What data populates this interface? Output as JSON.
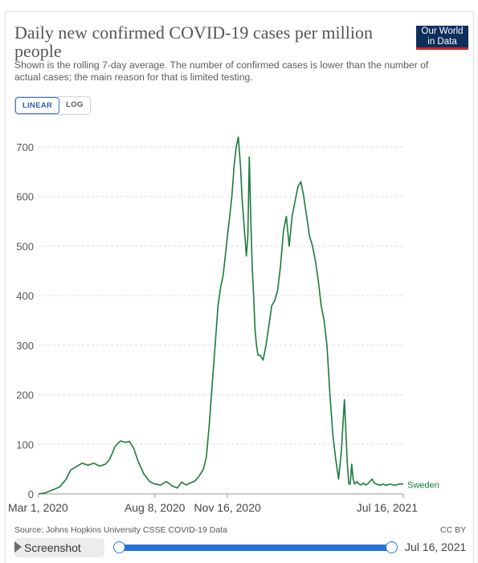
{
  "header": {
    "title": "Daily new confirmed COVID-19 cases per million people",
    "subtitle": "Shown is the rolling 7-day average. The number of confirmed cases is lower than the number of actual cases; the main reason for that is limited testing.",
    "logo_line1": "Our World",
    "logo_line2": "in Data"
  },
  "scale_toggle": {
    "linear_label": "LINEAR",
    "log_label": "LOG",
    "selected": "linear"
  },
  "footer": {
    "source": "Source: Johns Hopkins University CSSE COVID-19 Data",
    "license": "CC BY"
  },
  "timeline": {
    "screenshot_label": "Screenshot",
    "end_label": "Jul 16, 2021"
  },
  "colors": {
    "line": "#1b7a3d",
    "grid": "#dddddd",
    "slider": "#2474d6",
    "logo_bg": "#0e2e5c",
    "logo_accent": "#ce261e"
  },
  "chart_data": {
    "type": "line",
    "title": "Daily new confirmed COVID-19 cases per million people",
    "ylim": [
      0,
      700
    ],
    "yticks": [
      0,
      100,
      200,
      300,
      400,
      500,
      600,
      700
    ],
    "xlim": [
      "2020-03-01",
      "2021-07-16"
    ],
    "xtick_labels": [
      "Mar 1, 2020",
      "Aug 8, 2020",
      "Nov 16, 2020",
      "Jul 16, 2021"
    ],
    "xtick_dates": [
      "2020-03-01",
      "2020-08-08",
      "2020-11-16",
      "2021-07-16"
    ],
    "grid": true,
    "series": [
      {
        "name": "Sweden",
        "x": [
          "2020-03-01",
          "2020-03-10",
          "2020-03-20",
          "2020-03-30",
          "2020-04-08",
          "2020-04-14",
          "2020-04-22",
          "2020-04-30",
          "2020-05-08",
          "2020-05-16",
          "2020-05-24",
          "2020-06-01",
          "2020-06-06",
          "2020-06-10",
          "2020-06-14",
          "2020-06-18",
          "2020-06-22",
          "2020-06-28",
          "2020-07-04",
          "2020-07-10",
          "2020-07-16",
          "2020-07-24",
          "2020-08-01",
          "2020-08-08",
          "2020-08-16",
          "2020-08-24",
          "2020-09-01",
          "2020-09-08",
          "2020-09-14",
          "2020-09-20",
          "2020-09-26",
          "2020-10-02",
          "2020-10-08",
          "2020-10-14",
          "2020-10-18",
          "2020-10-22",
          "2020-10-26",
          "2020-10-30",
          "2020-11-03",
          "2020-11-07",
          "2020-11-10",
          "2020-11-13",
          "2020-11-16",
          "2020-11-19",
          "2020-11-22",
          "2020-11-25",
          "2020-11-28",
          "2020-12-01",
          "2020-12-04",
          "2020-12-06",
          "2020-12-08",
          "2020-12-10",
          "2020-12-12",
          "2020-12-14",
          "2020-12-16",
          "2020-12-18",
          "2020-12-20",
          "2020-12-22",
          "2020-12-24",
          "2020-12-26",
          "2020-12-28",
          "2020-12-31",
          "2021-01-04",
          "2021-01-08",
          "2021-01-12",
          "2021-01-16",
          "2021-01-20",
          "2021-01-24",
          "2021-01-28",
          "2021-02-01",
          "2021-02-05",
          "2021-02-09",
          "2021-02-13",
          "2021-02-17",
          "2021-02-21",
          "2021-02-25",
          "2021-03-01",
          "2021-03-05",
          "2021-03-09",
          "2021-03-13",
          "2021-03-17",
          "2021-03-21",
          "2021-03-25",
          "2021-03-29",
          "2021-04-02",
          "2021-04-06",
          "2021-04-10",
          "2021-04-14",
          "2021-04-18",
          "2021-04-22",
          "2021-04-26",
          "2021-04-30",
          "2021-05-02",
          "2021-05-04",
          "2021-05-06",
          "2021-05-08",
          "2021-05-10",
          "2021-05-13",
          "2021-05-16",
          "2021-05-19",
          "2021-05-22",
          "2021-05-25",
          "2021-05-28",
          "2021-05-31",
          "2021-06-03",
          "2021-06-06",
          "2021-06-09",
          "2021-06-12",
          "2021-06-15",
          "2021-06-18",
          "2021-06-21",
          "2021-06-24",
          "2021-06-28",
          "2021-07-02",
          "2021-07-06",
          "2021-07-10",
          "2021-07-16"
        ],
        "y": [
          0,
          2,
          8,
          14,
          30,
          48,
          55,
          62,
          58,
          62,
          56,
          60,
          68,
          80,
          95,
          102,
          107,
          104,
          106,
          92,
          66,
          40,
          25,
          20,
          18,
          25,
          16,
          12,
          24,
          18,
          22,
          26,
          36,
          50,
          75,
          140,
          220,
          300,
          380,
          420,
          440,
          480,
          520,
          560,
          600,
          660,
          700,
          720,
          660,
          600,
          560,
          520,
          480,
          520,
          680,
          560,
          460,
          400,
          330,
          300,
          280,
          280,
          270,
          300,
          340,
          380,
          390,
          410,
          460,
          530,
          560,
          500,
          560,
          590,
          620,
          630,
          600,
          560,
          520,
          500,
          470,
          430,
          380,
          350,
          300,
          200,
          120,
          70,
          30,
          90,
          190,
          60,
          20,
          20,
          60,
          30,
          20,
          25,
          20,
          18,
          22,
          18,
          20,
          25,
          30,
          22,
          20,
          18,
          18,
          20,
          18,
          18,
          20,
          18,
          18,
          20,
          20
        ]
      }
    ]
  }
}
